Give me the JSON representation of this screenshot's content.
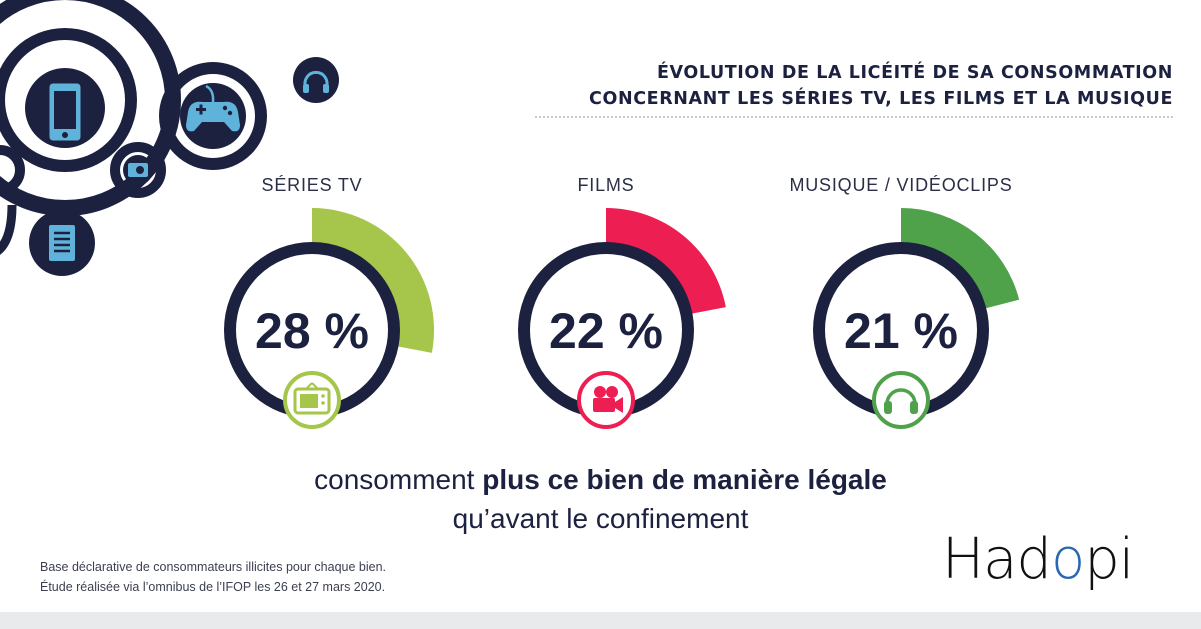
{
  "title": {
    "line1": "ÉVOLUTION DE LA LICÉITÉ DE SA CONSOMMATION",
    "line2": "CONCERNANT LES SÉRIES TV, LES FILMS ET LA MUSIQUE"
  },
  "chart_data": {
    "type": "pie",
    "unit": "%",
    "categories": [
      "SÉRIES TV",
      "FILMS",
      "MUSIQUE / VIDÉOCLIPS"
    ],
    "values": [
      28,
      22,
      21
    ],
    "value_labels": [
      "28 %",
      "22 %",
      "21 %"
    ],
    "colors": [
      "#a6c54b",
      "#ec1e52",
      "#4fa24a"
    ],
    "icons": [
      "tv-icon",
      "film-camera-icon",
      "headphones-icon"
    ]
  },
  "caption": {
    "pre": "consomment ",
    "bold": "plus ce bien de manière légale",
    "line2": "qu’avant le confinement"
  },
  "footnote": {
    "line1": "Base déclarative de consommateurs illicites pour chaque bien.",
    "line2": "Étude réalisée via l’omnibus de l’IFOP les 26 et 27 mars 2020."
  },
  "logo": {
    "part1": "Had",
    "part2": "o",
    "part3": "pi"
  },
  "colors": {
    "navy": "#1c2140",
    "icon_fill": "#5fb3da",
    "logo_accent": "#2a67b3"
  }
}
